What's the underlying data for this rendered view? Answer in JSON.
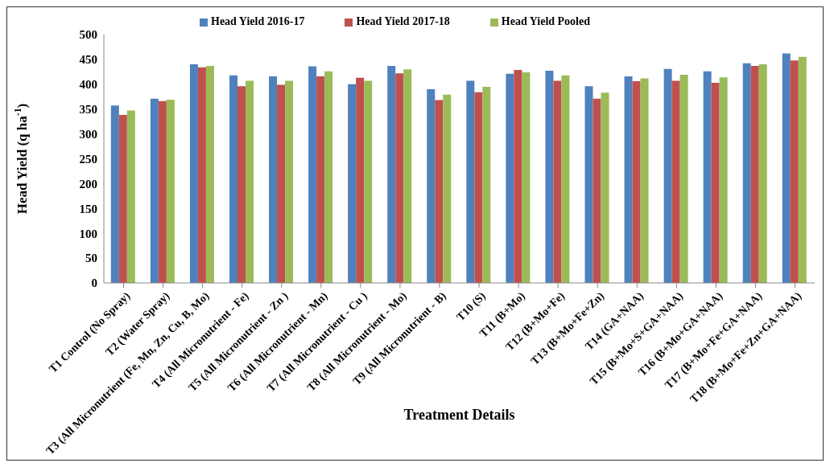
{
  "chart_data": {
    "type": "bar",
    "xlabel": "Treatment Details",
    "ylabel": "Head Yield (q ha$^{-1}$)",
    "categories": [
      "T1 Control (No Spray)",
      "T2 (Water Spray)",
      "T3 (All Micronutrient (Fe, Mn, Zn, Cu, B, Mo)",
      "T4 (All Micronutrient - Fe)",
      "T5 (All Micronutrient - Zn )",
      "T6 (All Micronutrient - Mn)",
      "T7 (All Micronutrient - Cu )",
      "T8 (All Micronutrient - Mo)",
      "T9 (All Micronutrient - B)",
      "T10 (S)",
      "T11 (B+Mo)",
      "T12 (B+Mo+Fe)",
      "T13 (B+Mo+Fe+Zn)",
      "T14 (GA+NAA)",
      "T15 (B+Mo+S+GA+NAA)",
      "T16 (B+Mo+GA+NAA)",
      "T17 (B+Mo+Fe+GA+NAA)",
      "T18 (B+Mo+Fe+Zn+GA+NAA)"
    ],
    "series": [
      {
        "name": "Head Yield  2016-17",
        "color": "#4f81bd",
        "values": [
          357,
          371,
          440,
          418,
          416,
          436,
          400,
          437,
          390,
          407,
          421,
          427,
          396,
          416,
          431,
          426,
          442,
          462
        ]
      },
      {
        "name": "Head Yield  2017-18",
        "color": "#c0504d",
        "values": [
          338,
          366,
          434,
          396,
          399,
          416,
          413,
          422,
          368,
          384,
          429,
          407,
          371,
          406,
          407,
          403,
          437,
          448
        ]
      },
      {
        "name": "Head Yield  Pooled",
        "color": "#9bbb59",
        "values": [
          347,
          369,
          437,
          407,
          407,
          426,
          407,
          430,
          379,
          395,
          424,
          418,
          383,
          412,
          419,
          414,
          440,
          455
        ]
      }
    ],
    "ylim": [
      0,
      500
    ],
    "yticks": [
      0,
      50,
      100,
      150,
      200,
      250,
      300,
      350,
      400,
      450,
      500
    ],
    "grid": false,
    "legend": "top"
  }
}
